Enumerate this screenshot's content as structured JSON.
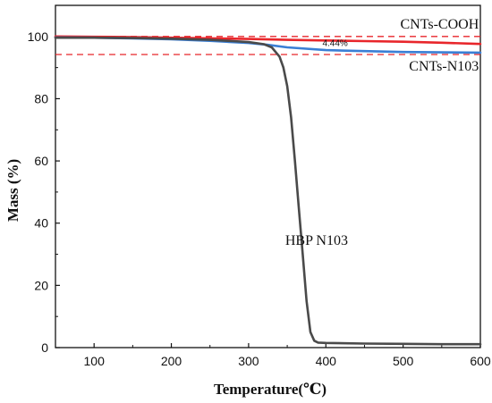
{
  "chart_data": {
    "type": "line",
    "xlabel": "Temperature(℃)",
    "ylabel": "Mass (%)",
    "xlim": [
      50,
      600
    ],
    "ylim": [
      0,
      110
    ],
    "xticks": [
      100,
      200,
      300,
      400,
      500,
      600
    ],
    "yticks": [
      0,
      20,
      40,
      60,
      80,
      100
    ],
    "grid": false,
    "series": [
      {
        "name": "CNTs-COOH",
        "color": "#e8262b",
        "points": [
          [
            50,
            100.0
          ],
          [
            100,
            99.9
          ],
          [
            150,
            99.8
          ],
          [
            200,
            99.6
          ],
          [
            250,
            99.4
          ],
          [
            300,
            99.2
          ],
          [
            350,
            98.9
          ],
          [
            400,
            98.7
          ],
          [
            450,
            98.5
          ],
          [
            500,
            98.3
          ],
          [
            550,
            98.0
          ],
          [
            600,
            97.6
          ]
        ]
      },
      {
        "name": "CNTs-N103",
        "color": "#3a7fd5",
        "points": [
          [
            50,
            99.7
          ],
          [
            100,
            99.6
          ],
          [
            150,
            99.4
          ],
          [
            200,
            99.1
          ],
          [
            250,
            98.6
          ],
          [
            300,
            97.9
          ],
          [
            325,
            97.3
          ],
          [
            350,
            96.5
          ],
          [
            400,
            95.6
          ],
          [
            450,
            95.3
          ],
          [
            500,
            95.0
          ],
          [
            550,
            94.9
          ],
          [
            600,
            94.8
          ]
        ]
      },
      {
        "name": "HBP N103",
        "color": "#4a4a4a",
        "points": [
          [
            50,
            99.6
          ],
          [
            100,
            99.6
          ],
          [
            150,
            99.5
          ],
          [
            200,
            99.3
          ],
          [
            250,
            98.9
          ],
          [
            280,
            98.5
          ],
          [
            300,
            98.2
          ],
          [
            320,
            97.5
          ],
          [
            330,
            96.5
          ],
          [
            340,
            93.5
          ],
          [
            345,
            90.0
          ],
          [
            350,
            84.0
          ],
          [
            355,
            74.0
          ],
          [
            360,
            60.0
          ],
          [
            365,
            45.0
          ],
          [
            370,
            30.0
          ],
          [
            375,
            15.0
          ],
          [
            380,
            5.0
          ],
          [
            385,
            2.2
          ],
          [
            390,
            1.6
          ],
          [
            400,
            1.5
          ],
          [
            450,
            1.3
          ],
          [
            500,
            1.2
          ],
          [
            550,
            1.1
          ],
          [
            600,
            1.1
          ]
        ]
      }
    ],
    "reference_lines": [
      {
        "y": 100.0,
        "color": "#e8262b",
        "dash": true
      },
      {
        "y": 94.2,
        "color": "#e8262b",
        "dash": true
      }
    ],
    "annotations": [
      {
        "text": "CNTs-COOH",
        "x": 598,
        "y": 102.6,
        "anchor": "end"
      },
      {
        "text": "4.44%",
        "x": 412,
        "y": 97.0,
        "anchor": "middle",
        "small": true
      },
      {
        "text": "CNTs-N103",
        "x": 598,
        "y": 89.0,
        "anchor": "end"
      },
      {
        "text": "HBP N103",
        "x": 388,
        "y": 33.0,
        "anchor": "middle"
      }
    ]
  }
}
